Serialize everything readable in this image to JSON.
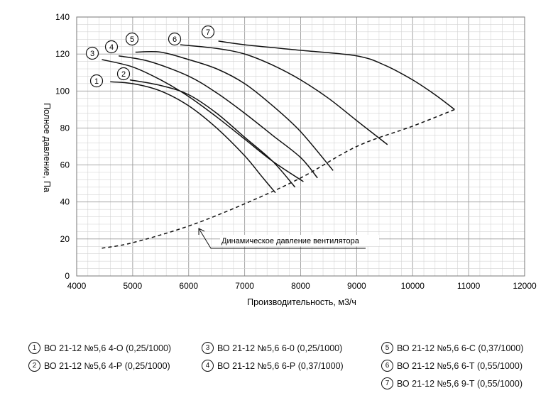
{
  "chart_data": {
    "type": "line",
    "xlabel": "Производительность, м3/ч",
    "ylabel": "Полное давление, Па",
    "xlim": [
      4000,
      12000
    ],
    "ylim": [
      0,
      140
    ],
    "x_ticks": [
      4000,
      5000,
      6000,
      7000,
      8000,
      9000,
      10000,
      11000,
      12000
    ],
    "y_ticks": [
      0,
      20,
      40,
      60,
      80,
      100,
      120,
      140
    ],
    "grid": true,
    "series": [
      {
        "name": "1",
        "points": [
          [
            4600,
            105
          ],
          [
            5000,
            104
          ],
          [
            5500,
            100
          ],
          [
            6000,
            92
          ],
          [
            6500,
            80
          ],
          [
            7000,
            65
          ],
          [
            7300,
            54
          ],
          [
            7550,
            45
          ]
        ]
      },
      {
        "name": "2",
        "points": [
          [
            4950,
            106
          ],
          [
            5500,
            103
          ],
          [
            6000,
            98
          ],
          [
            6500,
            88
          ],
          [
            7000,
            75
          ],
          [
            7500,
            62
          ],
          [
            7900,
            48
          ]
        ]
      },
      {
        "name": "3",
        "points": [
          [
            4450,
            117
          ],
          [
            5000,
            113
          ],
          [
            5500,
            106
          ],
          [
            6000,
            97
          ],
          [
            6500,
            86
          ],
          [
            7000,
            74
          ],
          [
            7500,
            62
          ],
          [
            8050,
            51
          ]
        ]
      },
      {
        "name": "4",
        "points": [
          [
            4750,
            119
          ],
          [
            5300,
            116
          ],
          [
            6000,
            108
          ],
          [
            6500,
            99
          ],
          [
            7000,
            88
          ],
          [
            7500,
            76
          ],
          [
            8000,
            64
          ],
          [
            8300,
            53
          ]
        ]
      },
      {
        "name": "5",
        "points": [
          [
            5050,
            121
          ],
          [
            5500,
            121
          ],
          [
            6000,
            117
          ],
          [
            6500,
            112
          ],
          [
            7000,
            104
          ],
          [
            7500,
            92
          ],
          [
            8000,
            78
          ],
          [
            8580,
            57
          ]
        ]
      },
      {
        "name": "6",
        "points": [
          [
            5850,
            125
          ],
          [
            6500,
            123
          ],
          [
            7000,
            120
          ],
          [
            7500,
            114
          ],
          [
            8000,
            106
          ],
          [
            8500,
            96
          ],
          [
            9000,
            84
          ],
          [
            9550,
            71
          ]
        ]
      },
      {
        "name": "7",
        "points": [
          [
            6530,
            127
          ],
          [
            7000,
            125
          ],
          [
            8000,
            122
          ],
          [
            9000,
            119
          ],
          [
            9500,
            114
          ],
          [
            10000,
            106
          ],
          [
            10400,
            98
          ],
          [
            10750,
            90
          ]
        ]
      },
      {
        "name": "Динамическое давление вентилятора",
        "style": "dashed",
        "points": [
          [
            4450,
            15
          ],
          [
            5000,
            18
          ],
          [
            6000,
            27
          ],
          [
            7000,
            39
          ],
          [
            8000,
            53
          ],
          [
            9000,
            70
          ],
          [
            10000,
            81
          ],
          [
            10750,
            90
          ]
        ]
      }
    ],
    "annotation": "Динамическое давление вентилятора",
    "curve_labels": [
      "1",
      "2",
      "3",
      "4",
      "5",
      "6",
      "7"
    ]
  },
  "legend": [
    {
      "num": "1",
      "label": "ВО 21-12 №5,6 4-О (0,25/1000)"
    },
    {
      "num": "2",
      "label": "ВО 21-12 №5,6 4-Р (0,25/1000)"
    },
    {
      "num": "3",
      "label": "ВО 21-12 №5,6 6-0 (0,25/1000)"
    },
    {
      "num": "4",
      "label": "ВО 21-12 №5,6 6-Р (0,37/1000)"
    },
    {
      "num": "5",
      "label": "ВО 21-12 №5,6 6-С (0,37/1000)"
    },
    {
      "num": "6",
      "label": "ВО 21-12 №5,6 6-Т (0,55/1000)"
    },
    {
      "num": "7",
      "label": "ВО 21-12 №5,6 9-Т (0,55/1000)"
    }
  ]
}
